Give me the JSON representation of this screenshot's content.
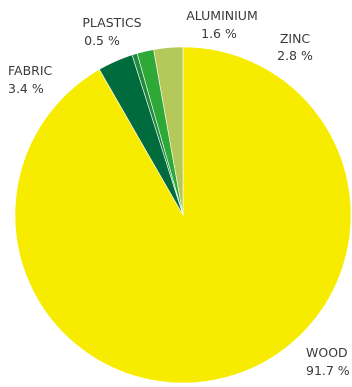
{
  "chart_data": {
    "type": "pie",
    "title": "",
    "slices": [
      {
        "label": "WOOD",
        "value_label": "91.7 %",
        "value": 91.7,
        "color": "#f7ec00"
      },
      {
        "label": "FABRIC",
        "value_label": "3.4 %",
        "value": 3.4,
        "color": "#006b3c"
      },
      {
        "label": "PLASTICS",
        "value_label": "0.5 %",
        "value": 0.5,
        "color": "#1f8b3b"
      },
      {
        "label": "ALUMINIUM",
        "value_label": "1.6 %",
        "value": 1.6,
        "color": "#2ea836"
      },
      {
        "label": "ZINC",
        "value_label": "2.8 %",
        "value": 2.8,
        "color": "#b5c85a"
      }
    ],
    "slice_order": "clockwise from 12 o'clock: WOOD, FABRIC, PLASTICS, ALUMINIUM, ZINC",
    "legend": "none (direct labels)"
  }
}
